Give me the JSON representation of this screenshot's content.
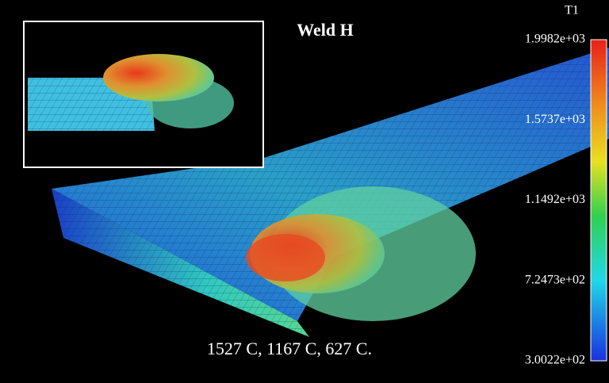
{
  "title": "Weld H",
  "colorbar": {
    "label": "T1",
    "ticks": [
      "1.9982e+03",
      "1.5737e+03",
      "1.1492e+03",
      "7.2473e+02",
      "3.0022e+02"
    ]
  },
  "caption": "1527 C,  1167 C,  627 C."
}
